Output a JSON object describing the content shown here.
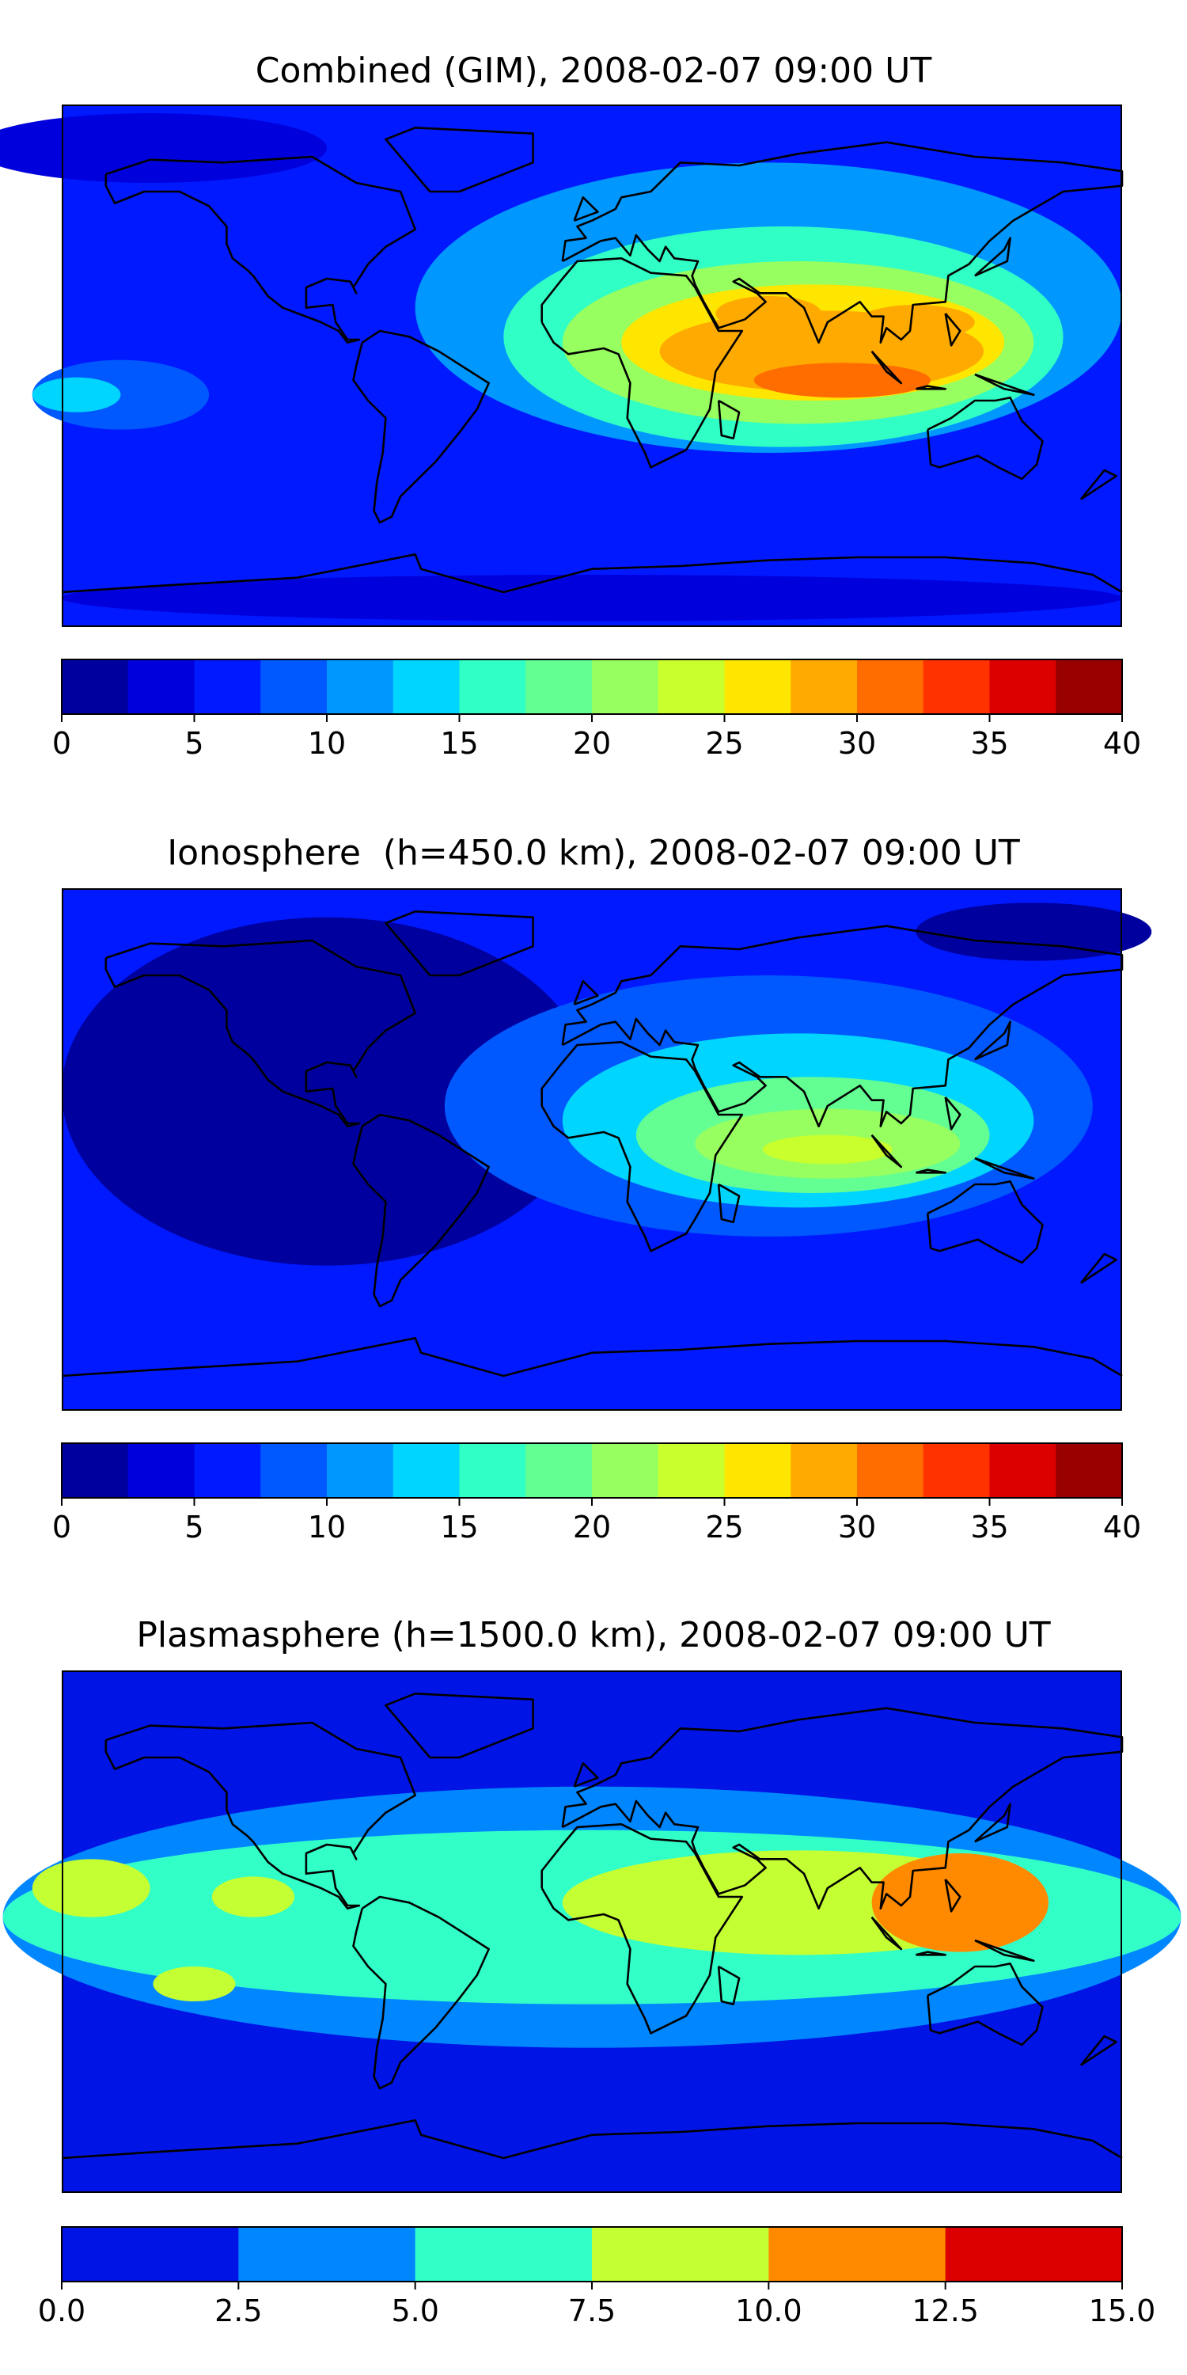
{
  "chart_data": [
    {
      "type": "heatmap",
      "title": "Combined (GIM), 2008-02-07 09:00 UT",
      "colorbar": {
        "levels": [
          0,
          2.5,
          5,
          7.5,
          10,
          12.5,
          15,
          17.5,
          20,
          22.5,
          25,
          27.5,
          30,
          32.5,
          35,
          37.5,
          40
        ],
        "colors": [
          "#00009f",
          "#0000dd",
          "#0019ff",
          "#0058ff",
          "#0097ff",
          "#00d5ff",
          "#30ffc6",
          "#64ff93",
          "#97ff60",
          "#c9ff2d",
          "#ffe600",
          "#ffaa00",
          "#ff6c00",
          "#ff3200",
          "#dc0000",
          "#990000"
        ],
        "tick_labels": [
          "0",
          "5",
          "10",
          "15",
          "20",
          "25",
          "30",
          "35",
          "40"
        ],
        "tick_values": [
          0,
          5,
          10,
          15,
          20,
          25,
          30,
          35,
          40
        ]
      },
      "regions": [
        {
          "value": 2.5,
          "lon": -150,
          "lat": 75,
          "rx": 60,
          "ry": 12
        },
        {
          "value": 2.5,
          "lon": 0,
          "lat": -80,
          "rx": 180,
          "ry": 8
        },
        {
          "value": 7.5,
          "lon": -160,
          "lat": -10,
          "rx": 30,
          "ry": 12
        },
        {
          "value": 12.5,
          "lon": -175,
          "lat": -10,
          "rx": 15,
          "ry": 6
        },
        {
          "value": 10,
          "lon": 60,
          "lat": 20,
          "rx": 120,
          "ry": 50
        },
        {
          "value": 15,
          "lon": 65,
          "lat": 10,
          "rx": 95,
          "ry": 38
        },
        {
          "value": 20,
          "lon": 70,
          "lat": 8,
          "rx": 80,
          "ry": 28
        },
        {
          "value": 25,
          "lon": 75,
          "lat": 8,
          "rx": 65,
          "ry": 20
        },
        {
          "value": 27.5,
          "lon": 78,
          "lat": 5,
          "rx": 55,
          "ry": 14
        },
        {
          "value": 30,
          "lon": 85,
          "lat": -5,
          "rx": 30,
          "ry": 6
        },
        {
          "value": 27.5,
          "lon": 60,
          "lat": 18,
          "rx": 18,
          "ry": 6
        },
        {
          "value": 27.5,
          "lon": 110,
          "lat": 15,
          "rx": 20,
          "ry": 6
        }
      ]
    },
    {
      "type": "heatmap",
      "title": "Ionosphere  (h=450.0 km), 2008-02-07 09:00 UT",
      "colorbar": {
        "levels": [
          0,
          2.5,
          5,
          7.5,
          10,
          12.5,
          15,
          17.5,
          20,
          22.5,
          25,
          27.5,
          30,
          32.5,
          35,
          37.5,
          40
        ],
        "colors": [
          "#00009f",
          "#0000dd",
          "#0019ff",
          "#0058ff",
          "#0097ff",
          "#00d5ff",
          "#30ffc6",
          "#64ff93",
          "#97ff60",
          "#c9ff2d",
          "#ffe600",
          "#ffaa00",
          "#ff6c00",
          "#ff3200",
          "#dc0000",
          "#990000"
        ],
        "tick_labels": [
          "0",
          "5",
          "10",
          "15",
          "20",
          "25",
          "30",
          "35",
          "40"
        ],
        "tick_values": [
          0,
          5,
          10,
          15,
          20,
          25,
          30,
          35,
          40
        ]
      },
      "regions": [
        {
          "value": 0,
          "lon": -90,
          "lat": 20,
          "rx": 90,
          "ry": 60
        },
        {
          "value": 0,
          "lon": 150,
          "lat": 75,
          "rx": 40,
          "ry": 10
        },
        {
          "value": 7.5,
          "lon": 60,
          "lat": 15,
          "rx": 110,
          "ry": 45
        },
        {
          "value": 12.5,
          "lon": 70,
          "lat": 10,
          "rx": 80,
          "ry": 30
        },
        {
          "value": 17.5,
          "lon": 75,
          "lat": 5,
          "rx": 60,
          "ry": 20
        },
        {
          "value": 20,
          "lon": 80,
          "lat": 2,
          "rx": 45,
          "ry": 12
        },
        {
          "value": 22.5,
          "lon": 80,
          "lat": 0,
          "rx": 22,
          "ry": 5
        }
      ]
    },
    {
      "type": "heatmap",
      "title": "Plasmasphere (h=1500.0 km), 2008-02-07 09:00 UT",
      "colorbar": {
        "levels": [
          0,
          2.5,
          5,
          7.5,
          10,
          12.5,
          15
        ],
        "colors": [
          "#0014e6",
          "#0086ff",
          "#32ffc8",
          "#c4ff33",
          "#ff8a00",
          "#dd0000"
        ],
        "tick_labels": [
          "0.0",
          "2.5",
          "5.0",
          "7.5",
          "10.0",
          "12.5",
          "15.0"
        ],
        "tick_values": [
          0,
          2.5,
          5,
          7.5,
          10,
          12.5,
          15
        ]
      },
      "regions": [
        {
          "value": 2.5,
          "lon": 0,
          "lat": 5,
          "rx": 200,
          "ry": 45
        },
        {
          "value": 5,
          "lon": 0,
          "lat": 5,
          "rx": 200,
          "ry": 30
        },
        {
          "value": 7.5,
          "lon": 70,
          "lat": 10,
          "rx": 80,
          "ry": 18
        },
        {
          "value": 7.5,
          "lon": -170,
          "lat": 15,
          "rx": 20,
          "ry": 10
        },
        {
          "value": 7.5,
          "lon": -115,
          "lat": 12,
          "rx": 14,
          "ry": 7
        },
        {
          "value": 7.5,
          "lon": -135,
          "lat": -18,
          "rx": 14,
          "ry": 6
        },
        {
          "value": 10,
          "lon": 125,
          "lat": 10,
          "rx": 30,
          "ry": 17
        }
      ]
    }
  ]
}
